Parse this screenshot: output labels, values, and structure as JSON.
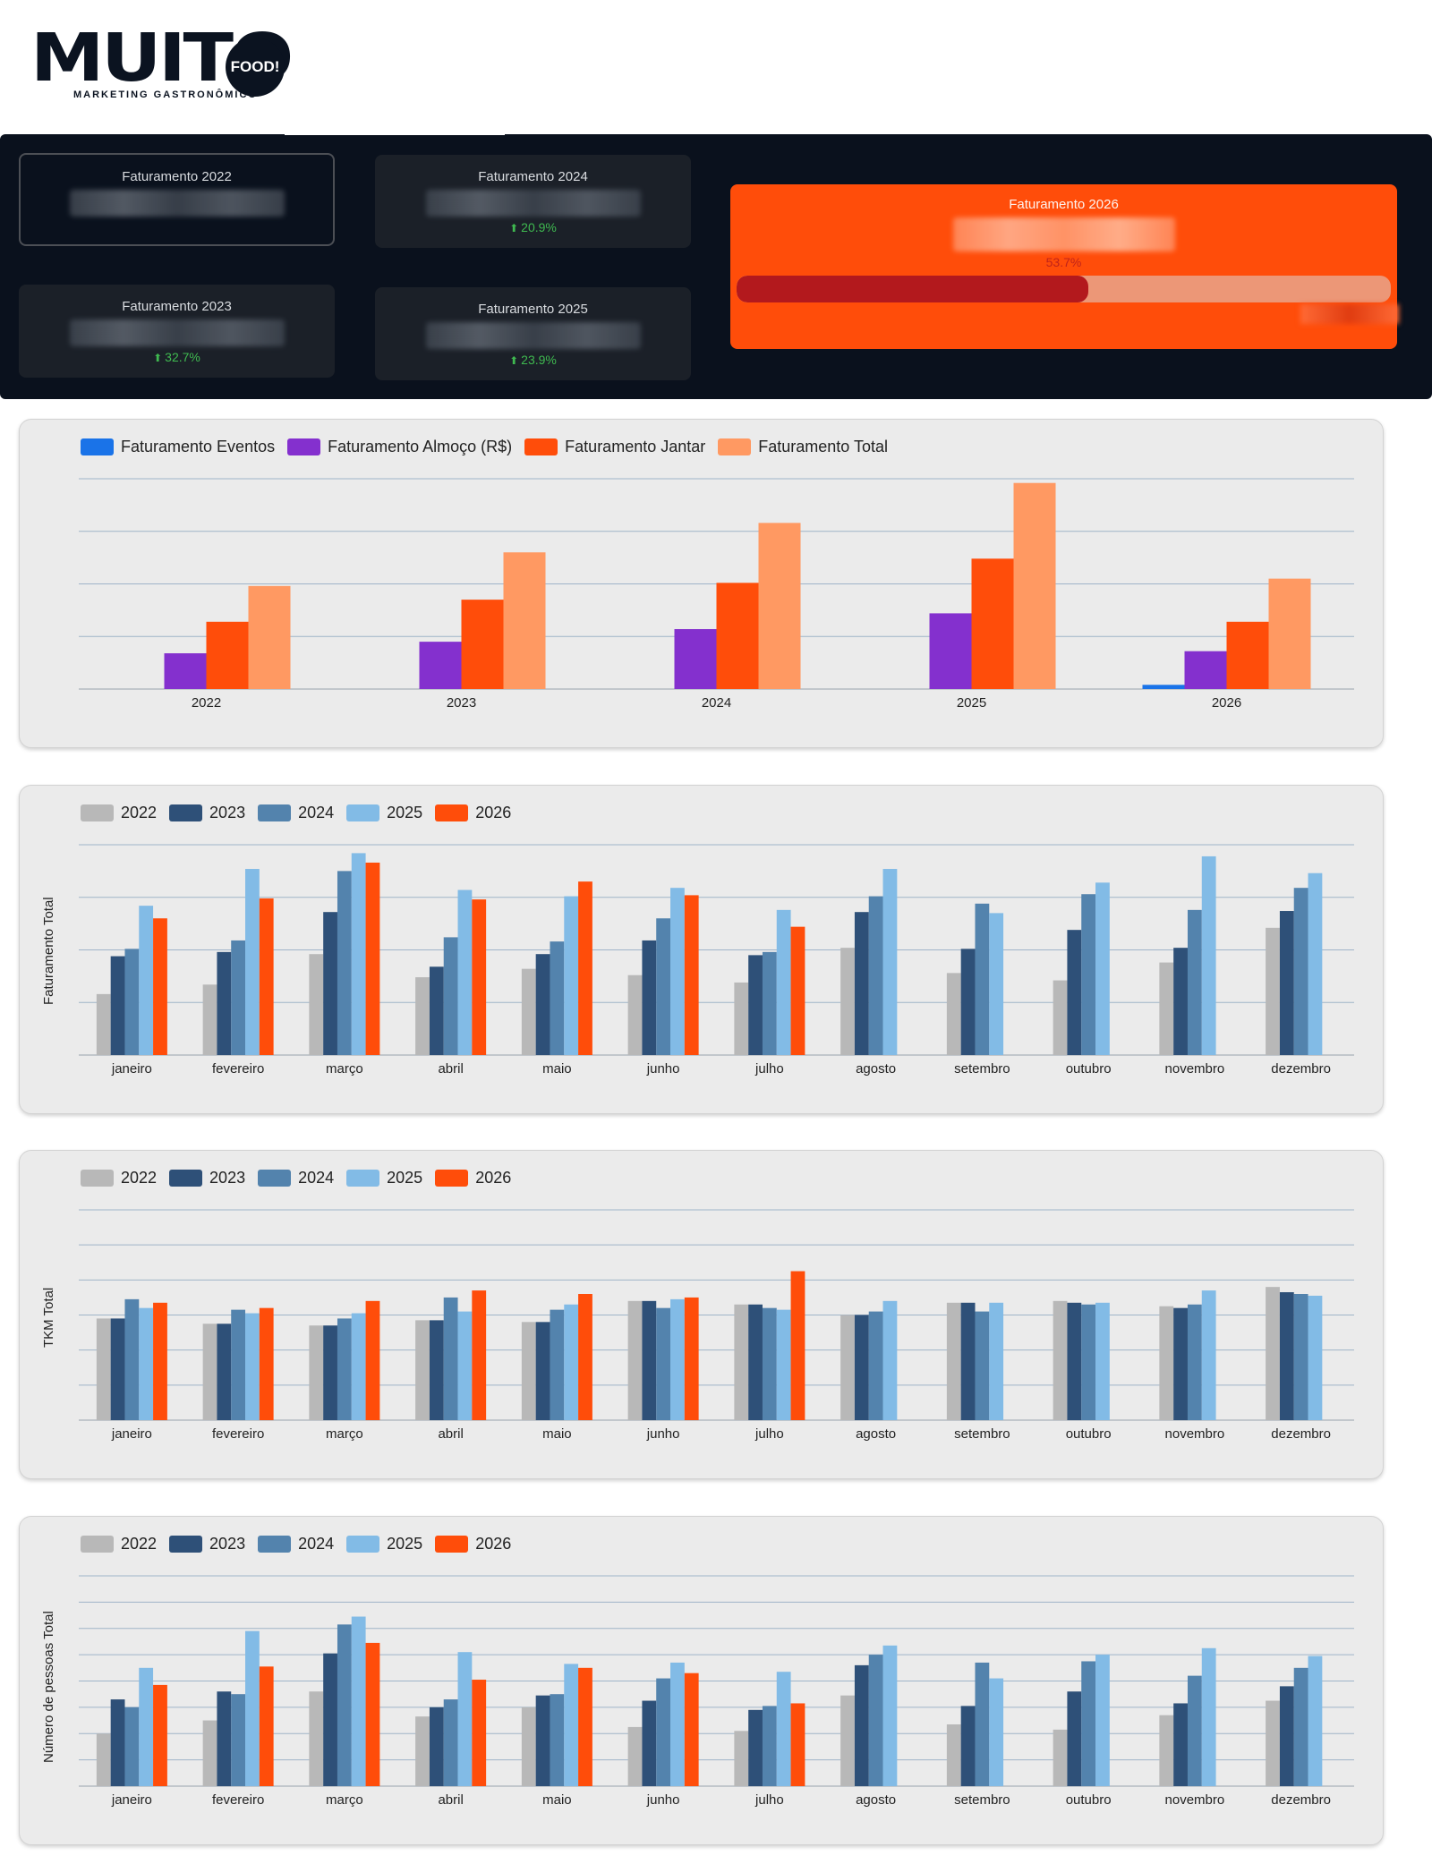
{
  "logo": {
    "word": "MUITO",
    "badge": "FOOD!",
    "tagline": "MARKETING GASTRONÔMICO"
  },
  "kpis": {
    "y2022": {
      "title": "Faturamento 2022",
      "growth": ""
    },
    "y2023": {
      "title": "Faturamento 2023",
      "growth": "32.7%"
    },
    "y2024": {
      "title": "Faturamento 2024",
      "growth": "20.9%"
    },
    "y2025": {
      "title": "Faturamento 2025",
      "growth": "23.9%"
    },
    "y2026": {
      "title": "Faturamento 2026",
      "progress_pct": "53.7%",
      "progress_fraction": 0.537
    }
  },
  "colors": {
    "eventos": "#1a73e8",
    "almoco": "#8430ce",
    "jantar": "#ff4d0a",
    "total": "#ff9962",
    "y2022": "#b8b8b8",
    "y2023": "#2e5078",
    "y2024": "#5383ad",
    "y2025": "#82bbe6",
    "y2026": "#ff4d0a",
    "growth_up": "#3fb950",
    "kpi_highlight": "#ff4d0a"
  },
  "chart_data": [
    {
      "type": "bar",
      "title": "",
      "xlabel": "",
      "ylabel": "",
      "ylim": [
        0,
        200
      ],
      "grid": true,
      "legend": "top-left",
      "categories": [
        "2022",
        "2023",
        "2024",
        "2025",
        "2026"
      ],
      "series": [
        {
          "name": "Faturamento Eventos",
          "values": [
            0,
            0,
            0,
            0,
            4
          ]
        },
        {
          "name": "Faturamento Almoço (R$)",
          "values": [
            34,
            45,
            57,
            72,
            36
          ]
        },
        {
          "name": "Faturamento Jantar",
          "values": [
            64,
            85,
            101,
            124,
            64
          ]
        },
        {
          "name": "Faturamento Total",
          "values": [
            98,
            130,
            158,
            196,
            105
          ]
        }
      ]
    },
    {
      "type": "bar",
      "title": "",
      "xlabel": "",
      "ylabel": "Faturamento Total",
      "ylim": [
        0,
        200
      ],
      "grid": true,
      "legend": "top-left",
      "categories": [
        "janeiro",
        "fevereiro",
        "março",
        "abril",
        "maio",
        "junho",
        "julho",
        "agosto",
        "setembro",
        "outubro",
        "novembro",
        "dezembro"
      ],
      "series": [
        {
          "name": "2022",
          "values": [
            58,
            67,
            96,
            74,
            82,
            76,
            69,
            102,
            78,
            71,
            88,
            121
          ]
        },
        {
          "name": "2023",
          "values": [
            94,
            98,
            136,
            84,
            96,
            109,
            95,
            136,
            101,
            119,
            102,
            137
          ]
        },
        {
          "name": "2024",
          "values": [
            101,
            109,
            175,
            112,
            108,
            130,
            98,
            151,
            144,
            153,
            138,
            159
          ]
        },
        {
          "name": "2025",
          "values": [
            142,
            177,
            192,
            157,
            151,
            159,
            138,
            177,
            135,
            164,
            189,
            173
          ]
        },
        {
          "name": "2026",
          "values": [
            130,
            149,
            183,
            148,
            165,
            152,
            122,
            null,
            null,
            null,
            null,
            null
          ]
        }
      ]
    },
    {
      "type": "bar",
      "title": "",
      "xlabel": "",
      "ylabel": "TKM Total",
      "ylim": [
        0,
        120
      ],
      "grid": true,
      "legend": "top-left",
      "categories": [
        "janeiro",
        "fevereiro",
        "março",
        "abril",
        "maio",
        "junho",
        "julho",
        "agosto",
        "setembro",
        "outubro",
        "novembro",
        "dezembro"
      ],
      "series": [
        {
          "name": "2022",
          "values": [
            58,
            55,
            54,
            57,
            56,
            68,
            66,
            60,
            67,
            68,
            65,
            76
          ]
        },
        {
          "name": "2023",
          "values": [
            58,
            55,
            54,
            57,
            56,
            68,
            66,
            60,
            67,
            67,
            64,
            73
          ]
        },
        {
          "name": "2024",
          "values": [
            69,
            63,
            58,
            70,
            63,
            64,
            64,
            62,
            62,
            66,
            66,
            72
          ]
        },
        {
          "name": "2025",
          "values": [
            64,
            61,
            61,
            62,
            66,
            69,
            63,
            68,
            67,
            67,
            74,
            71
          ]
        },
        {
          "name": "2026",
          "values": [
            67,
            64,
            68,
            74,
            72,
            70,
            85,
            null,
            null,
            null,
            null,
            null
          ]
        }
      ]
    },
    {
      "type": "bar",
      "title": "",
      "xlabel": "",
      "ylabel": "Número de pessoas Total",
      "ylim": [
        0,
        160
      ],
      "grid": true,
      "legend": "top-left",
      "categories": [
        "janeiro",
        "fevereiro",
        "março",
        "abril",
        "maio",
        "junho",
        "julho",
        "agosto",
        "setembro",
        "outubro",
        "novembro",
        "dezembro"
      ],
      "series": [
        {
          "name": "2022",
          "values": [
            40,
            50,
            72,
            53,
            60,
            45,
            42,
            69,
            47,
            43,
            54,
            65
          ]
        },
        {
          "name": "2023",
          "values": [
            66,
            72,
            101,
            60,
            69,
            65,
            58,
            92,
            61,
            72,
            63,
            76
          ]
        },
        {
          "name": "2024",
          "values": [
            60,
            70,
            123,
            66,
            70,
            82,
            61,
            100,
            94,
            95,
            84,
            90
          ]
        },
        {
          "name": "2025",
          "values": [
            90,
            118,
            129,
            102,
            93,
            94,
            87,
            107,
            82,
            100,
            105,
            99
          ]
        },
        {
          "name": "2026",
          "values": [
            77,
            91,
            109,
            81,
            90,
            86,
            63,
            null,
            null,
            null,
            null,
            null
          ]
        }
      ]
    }
  ]
}
